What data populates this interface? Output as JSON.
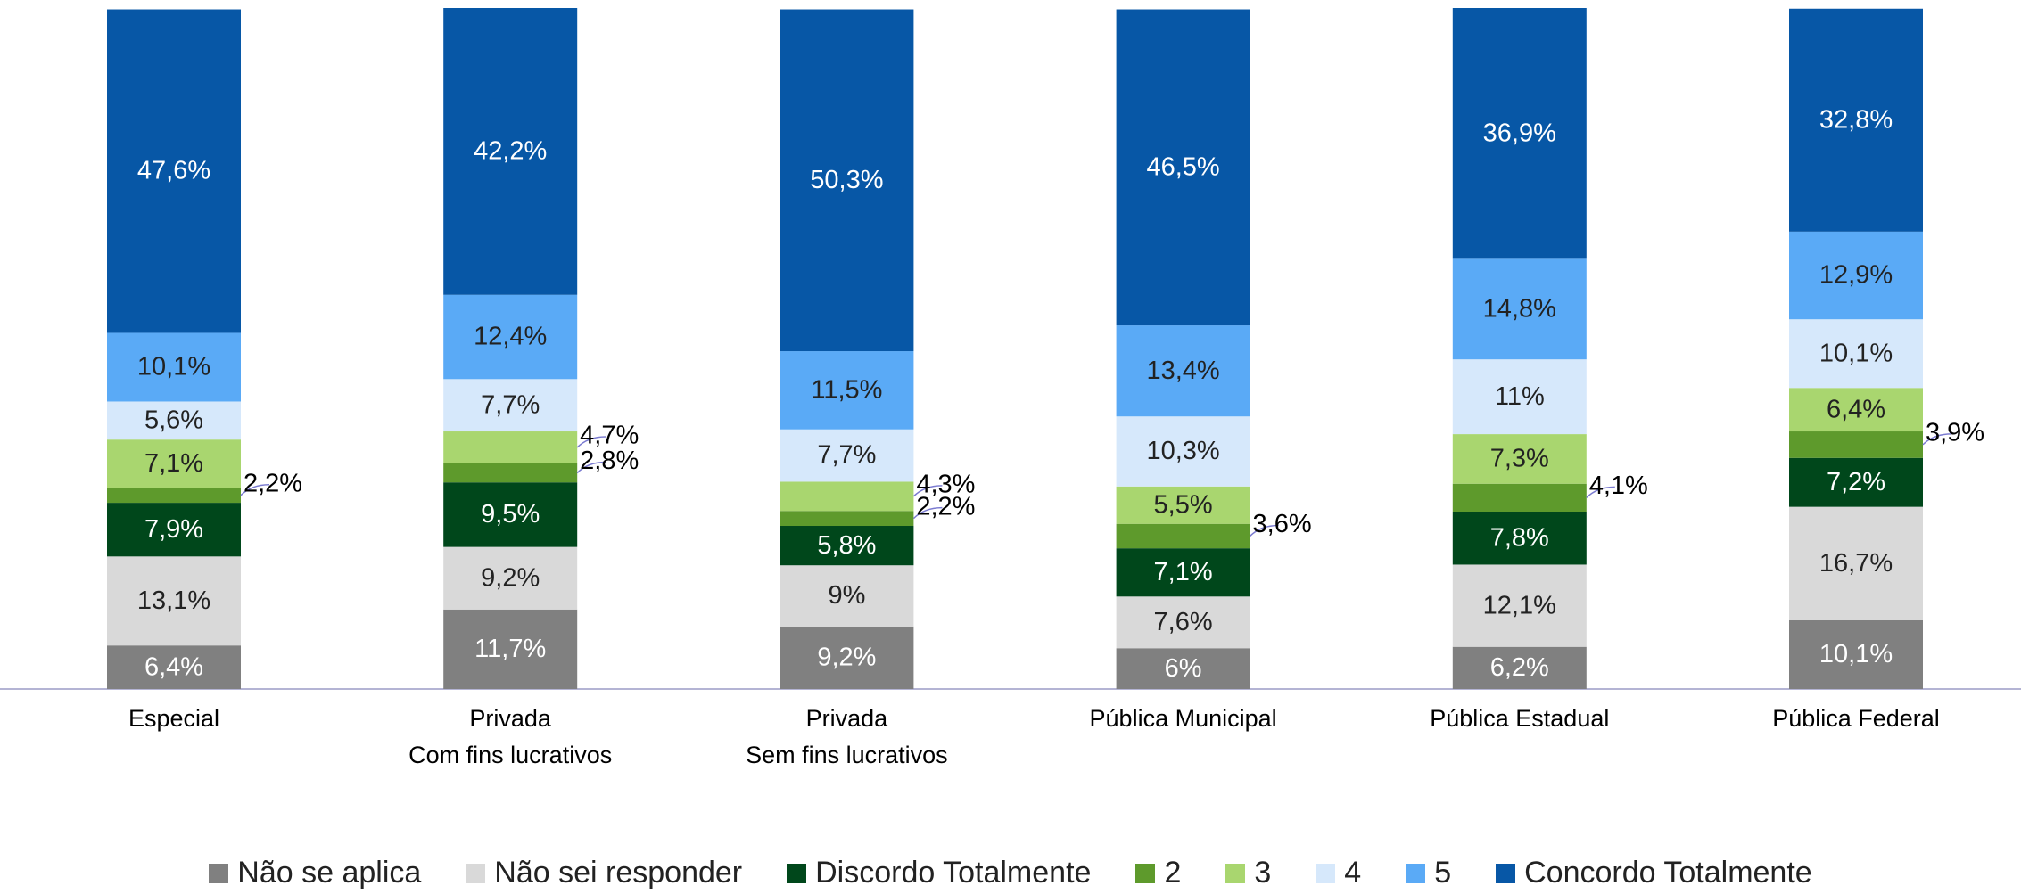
{
  "chart_data": {
    "type": "stacked_bar",
    "categories": [
      "Especial",
      "Privada\nCom fins lucrativos",
      "Privada\nSem fins lucrativos",
      "Pública Municipal",
      "Pública Estadual",
      "Pública Federal"
    ],
    "series": [
      {
        "name": "Não se aplica",
        "color": "#808080",
        "values": [
          6.4,
          11.7,
          9.2,
          6,
          6.2,
          10.1
        ],
        "value_labels": [
          "6,4%",
          "11,7%",
          "9,2%",
          "6%",
          "6,2%",
          "10,1%"
        ]
      },
      {
        "name": "Não sei responder",
        "color": "#d9d9d9",
        "values": [
          13.1,
          9.2,
          9,
          7.6,
          12.1,
          16.7
        ],
        "value_labels": [
          "13,1%",
          "9,2%",
          "9%",
          "7,6%",
          "12,1%",
          "16,7%"
        ]
      },
      {
        "name": "Discordo Totalmente",
        "color": "#00471b",
        "values": [
          7.9,
          9.5,
          5.8,
          7.1,
          7.8,
          7.2
        ],
        "value_labels": [
          "7,9%",
          "9,5%",
          "5,8%",
          "7,1%",
          "7,8%",
          "7,2%"
        ]
      },
      {
        "name": "2",
        "color": "#5e9a2c",
        "values": [
          2.2,
          2.8,
          2.2,
          3.6,
          4.1,
          3.9
        ],
        "value_labels": [
          "2,2%",
          "2,8%",
          "2,2%",
          "3,6%",
          "4,1%",
          "3,9%"
        ]
      },
      {
        "name": "3",
        "color": "#a9d66f",
        "values": [
          7.1,
          4.7,
          4.3,
          5.5,
          7.3,
          6.4
        ],
        "value_labels": [
          "7,1%",
          "4,7%",
          "4,3%",
          "5,5%",
          "7,3%",
          "6,4%"
        ]
      },
      {
        "name": "4",
        "color": "#d6e8fb",
        "values": [
          5.6,
          7.7,
          7.7,
          10.3,
          11,
          10.1
        ],
        "value_labels": [
          "5,6%",
          "7,7%",
          "7,7%",
          "10,3%",
          "11%",
          "10,1%"
        ]
      },
      {
        "name": "5",
        "color": "#5aaaf6",
        "values": [
          10.1,
          12.4,
          11.5,
          13.4,
          14.8,
          12.9
        ],
        "value_labels": [
          "10,1%",
          "12,4%",
          "11,5%",
          "13,4%",
          "14,8%",
          "12,9%"
        ]
      },
      {
        "name": "Concordo Totalmente",
        "color": "#0757a6",
        "values": [
          47.6,
          42.2,
          50.3,
          46.5,
          36.9,
          32.8
        ],
        "value_labels": [
          "47,6%",
          "42,2%",
          "50,3%",
          "46,5%",
          "36,9%",
          "32,8%"
        ]
      }
    ],
    "legend": "bottom"
  }
}
